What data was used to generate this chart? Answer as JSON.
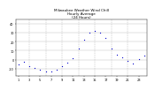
{
  "title": "Milwaukee Weather Wind Chill\nHourly Average\n(24 Hours)",
  "title_fontsize": 3.0,
  "hours": [
    1,
    2,
    3,
    4,
    5,
    6,
    7,
    8,
    9,
    10,
    11,
    12,
    13,
    14,
    15,
    16,
    17,
    18,
    19,
    20,
    21,
    22,
    23,
    24
  ],
  "wind_chill": [
    -5,
    -2,
    -7,
    -9,
    -11,
    -13,
    -13,
    -11,
    -7,
    -3,
    2,
    12,
    22,
    30,
    32,
    30,
    24,
    12,
    6,
    3,
    -1,
    -4,
    1,
    5
  ],
  "dot_color": "#0000cc",
  "bg_color": "#ffffff",
  "grid_color": "#999999",
  "ylim_min": -18,
  "ylim_max": 45,
  "ytick_values": [
    -10,
    0,
    10,
    20,
    30,
    40
  ],
  "ytick_labels": [
    "-10",
    "0",
    "10",
    "20",
    "30",
    "40"
  ],
  "xtick_positions": [
    1,
    3,
    5,
    7,
    9,
    11,
    13,
    15,
    17,
    19,
    21,
    23
  ],
  "xtick_labels": [
    "1",
    "3",
    "5",
    "7",
    "9",
    "11",
    "13",
    "15",
    "17",
    "19",
    "21",
    "23"
  ],
  "vline_positions": [
    3,
    6,
    9,
    12,
    15,
    18,
    21
  ],
  "marker_size": 0.9,
  "tick_fontsize": 2.5
}
